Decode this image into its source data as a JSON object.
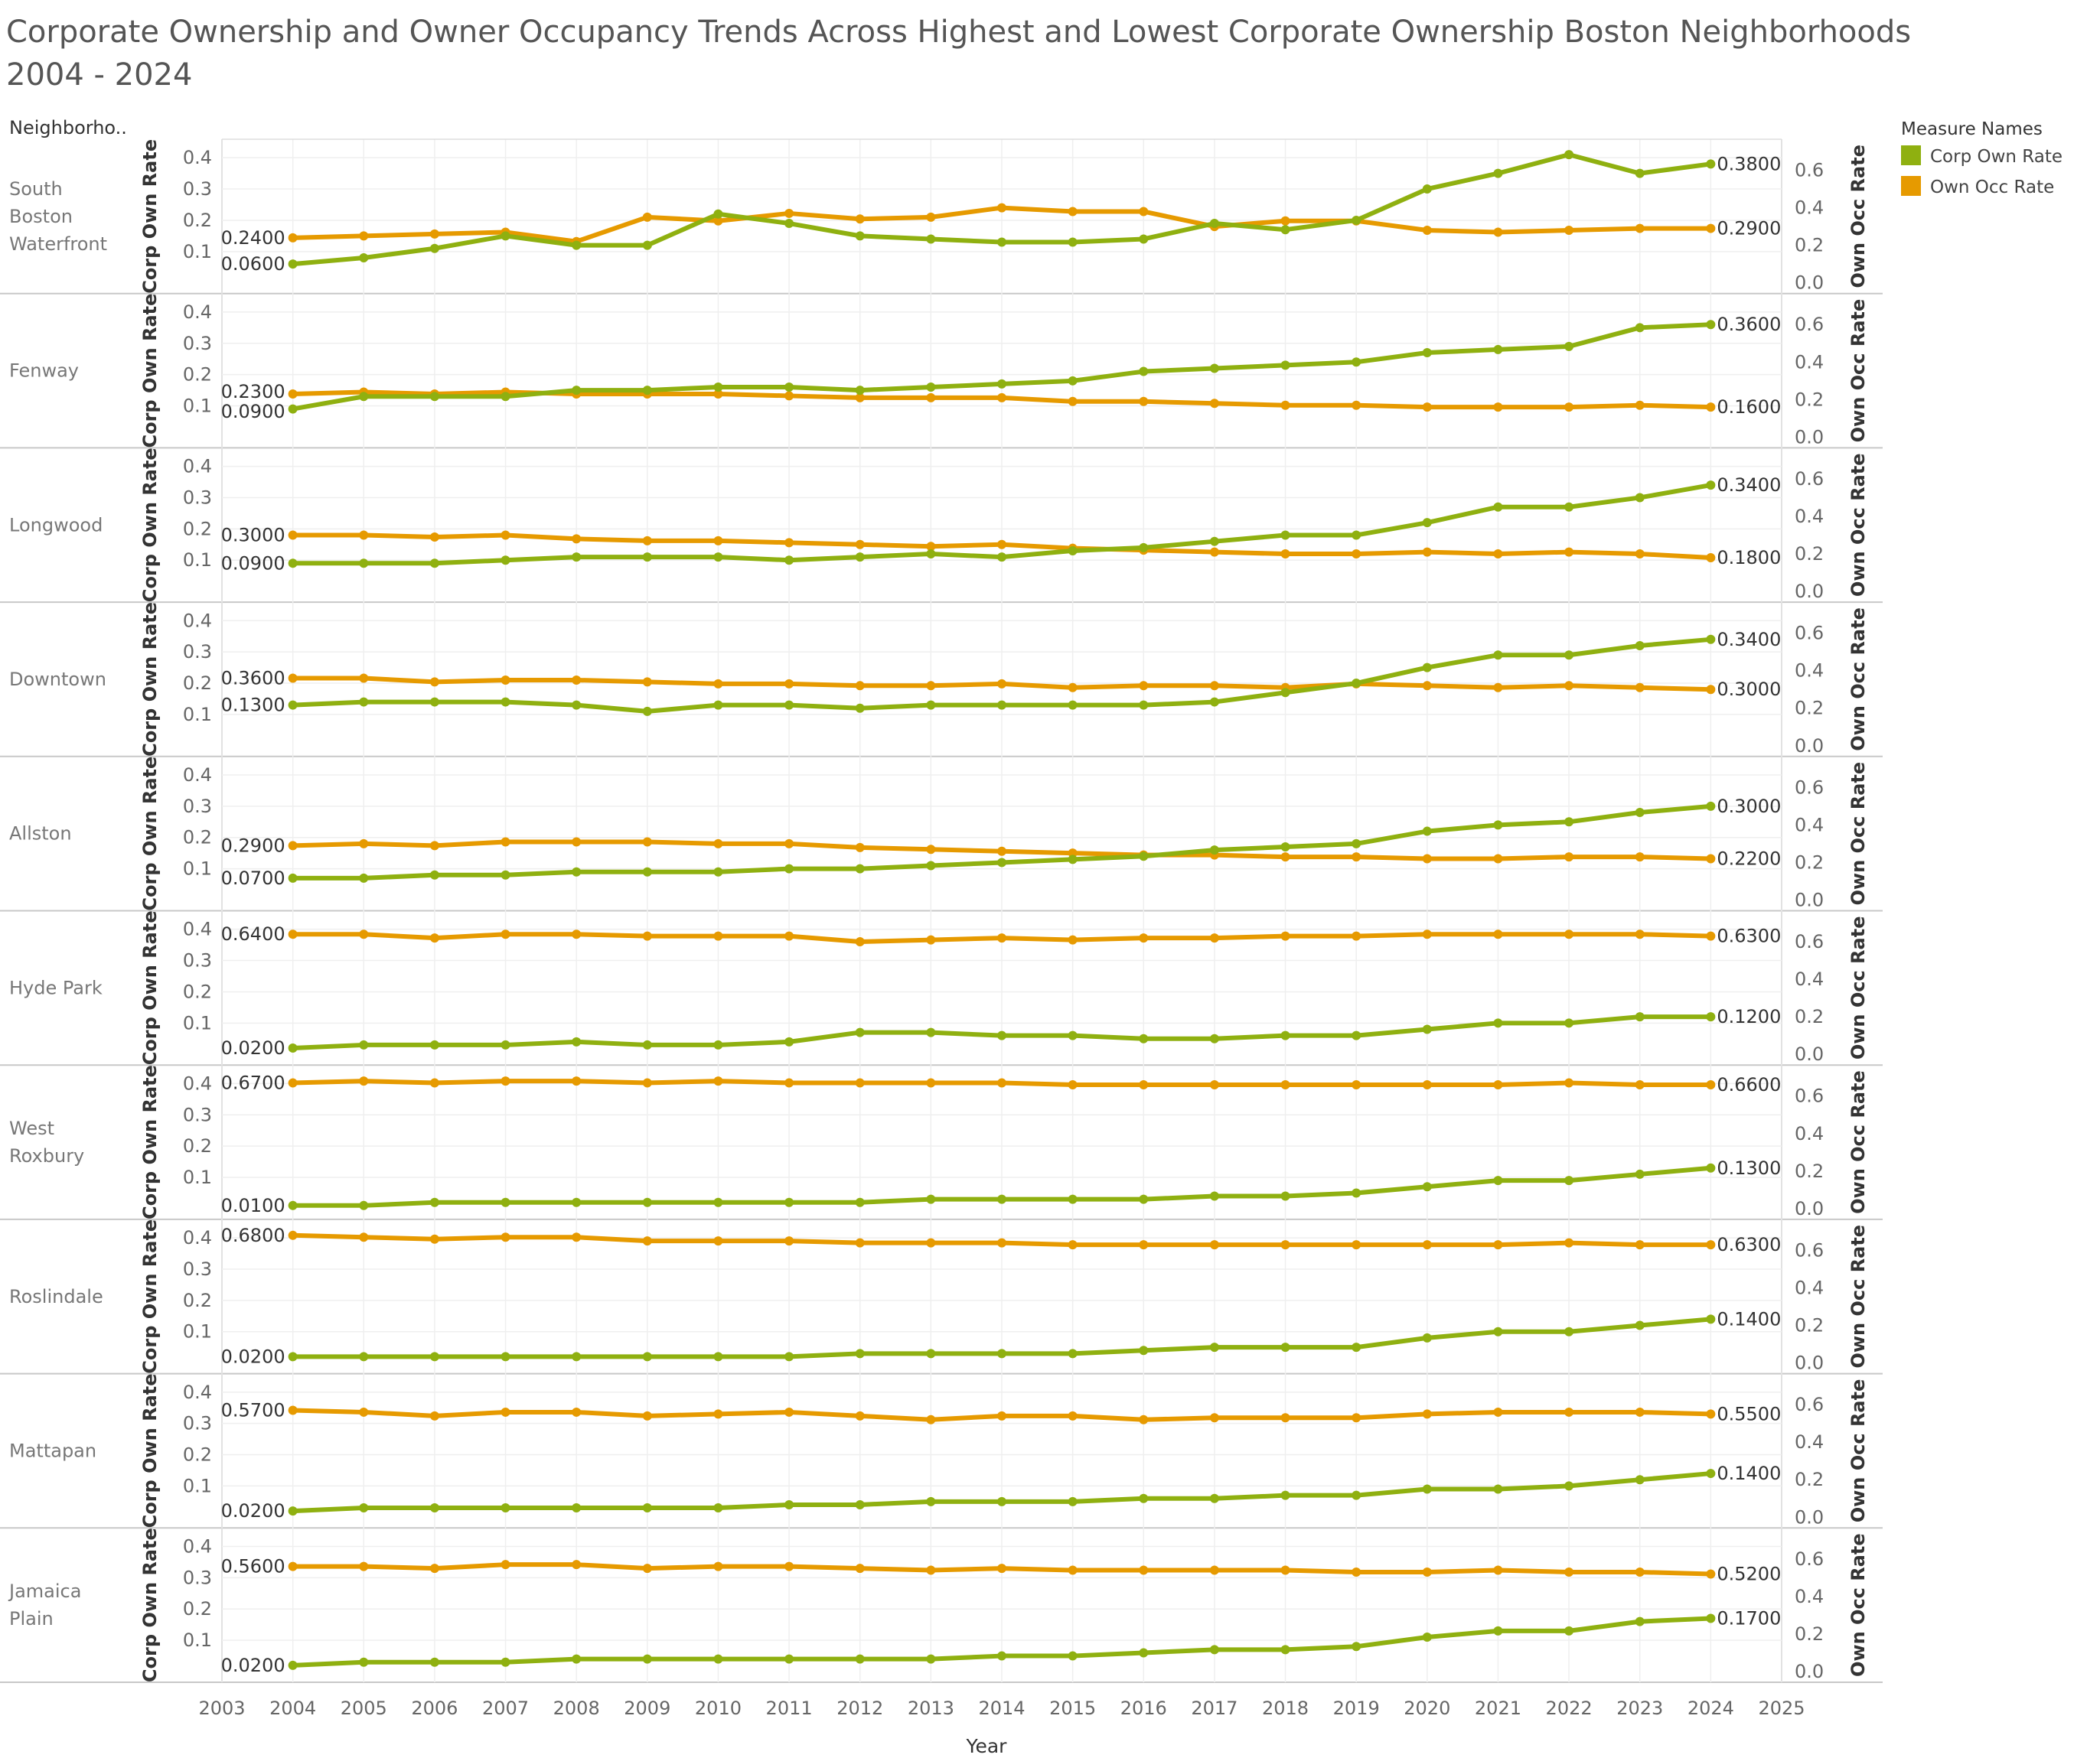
{
  "title": {
    "line1": "Corporate Ownership and Owner Occupancy Trends Across Highest and Lowest Corporate Ownership Boston Neighborhoods",
    "line2": "2004 - 2024"
  },
  "row_header": "Neighborho..",
  "legend": {
    "title": "Measure Names",
    "items": [
      {
        "label": "Corp Own Rate",
        "color": "#8fb010"
      },
      {
        "label": "Own Occ Rate",
        "color": "#e69a00"
      }
    ]
  },
  "chart_data": {
    "type": "line",
    "x_axis": {
      "title": "Year",
      "ticks": [
        2003,
        2004,
        2005,
        2006,
        2007,
        2008,
        2009,
        2010,
        2011,
        2012,
        2013,
        2014,
        2015,
        2016,
        2017,
        2018,
        2019,
        2020,
        2021,
        2022,
        2023,
        2024,
        2025
      ],
      "range": [
        2003,
        2025
      ]
    },
    "left_axis": {
      "title": "Corp Own Rate",
      "ticks": [
        "0.1",
        "0.2",
        "0.3",
        "0.4"
      ],
      "range": [
        0,
        0.42
      ]
    },
    "right_axis": {
      "title": "Own Occ Rate",
      "ticks": [
        "0.0",
        "0.2",
        "0.4",
        "0.6"
      ],
      "range": [
        0,
        0.7
      ]
    },
    "years": [
      2004,
      2005,
      2006,
      2007,
      2008,
      2009,
      2010,
      2011,
      2012,
      2013,
      2014,
      2015,
      2016,
      2017,
      2018,
      2019,
      2020,
      2021,
      2022,
      2023,
      2024
    ],
    "panels": [
      {
        "name": "South\nBoston\nWaterfront",
        "corp": [
          0.06,
          0.08,
          0.11,
          0.15,
          0.12,
          0.12,
          0.22,
          0.19,
          0.15,
          0.14,
          0.13,
          0.13,
          0.14,
          0.19,
          0.17,
          0.2,
          0.3,
          0.35,
          0.41,
          0.35,
          0.38
        ],
        "occ": [
          0.24,
          0.25,
          0.26,
          0.27,
          0.22,
          0.35,
          0.33,
          0.37,
          0.34,
          0.35,
          0.4,
          0.38,
          0.38,
          0.3,
          0.33,
          0.33,
          0.28,
          0.27,
          0.28,
          0.29,
          0.29
        ],
        "corp_start": "0.0600",
        "corp_end": "0.3800",
        "occ_start": "0.2400",
        "occ_end": "0.2900"
      },
      {
        "name": "Fenway",
        "corp": [
          0.09,
          0.13,
          0.13,
          0.13,
          0.15,
          0.15,
          0.16,
          0.16,
          0.15,
          0.16,
          0.17,
          0.18,
          0.21,
          0.22,
          0.23,
          0.24,
          0.27,
          0.28,
          0.29,
          0.35,
          0.36
        ],
        "occ": [
          0.23,
          0.24,
          0.23,
          0.24,
          0.23,
          0.23,
          0.23,
          0.22,
          0.21,
          0.21,
          0.21,
          0.19,
          0.19,
          0.18,
          0.17,
          0.17,
          0.16,
          0.16,
          0.16,
          0.17,
          0.16
        ],
        "corp_start": "0.0900",
        "corp_end": "0.3600",
        "occ_start": "0.2300",
        "occ_end": "0.1600"
      },
      {
        "name": "Longwood",
        "corp": [
          0.09,
          0.09,
          0.09,
          0.1,
          0.11,
          0.11,
          0.11,
          0.1,
          0.11,
          0.12,
          0.11,
          0.13,
          0.14,
          0.16,
          0.18,
          0.18,
          0.22,
          0.27,
          0.27,
          0.3,
          0.34
        ],
        "occ": [
          0.3,
          0.3,
          0.29,
          0.3,
          0.28,
          0.27,
          0.27,
          0.26,
          0.25,
          0.24,
          0.25,
          0.23,
          0.22,
          0.21,
          0.2,
          0.2,
          0.21,
          0.2,
          0.21,
          0.2,
          0.18
        ],
        "corp_start": "0.0900",
        "corp_end": "0.3400",
        "occ_start": "0.3000",
        "occ_end": "0.1800"
      },
      {
        "name": "Downtown",
        "corp": [
          0.13,
          0.14,
          0.14,
          0.14,
          0.13,
          0.11,
          0.13,
          0.13,
          0.12,
          0.13,
          0.13,
          0.13,
          0.13,
          0.14,
          0.17,
          0.2,
          0.25,
          0.29,
          0.29,
          0.32,
          0.34
        ],
        "occ": [
          0.36,
          0.36,
          0.34,
          0.35,
          0.35,
          0.34,
          0.33,
          0.33,
          0.32,
          0.32,
          0.33,
          0.31,
          0.32,
          0.32,
          0.31,
          0.33,
          0.32,
          0.31,
          0.32,
          0.31,
          0.3
        ],
        "corp_start": "0.1300",
        "corp_end": "0.3400",
        "occ_start": "0.3600",
        "occ_end": "0.3000"
      },
      {
        "name": "Allston",
        "corp": [
          0.07,
          0.07,
          0.08,
          0.08,
          0.09,
          0.09,
          0.09,
          0.1,
          0.1,
          0.11,
          0.12,
          0.13,
          0.14,
          0.16,
          0.17,
          0.18,
          0.22,
          0.24,
          0.25,
          0.28,
          0.3
        ],
        "occ": [
          0.29,
          0.3,
          0.29,
          0.31,
          0.31,
          0.31,
          0.3,
          0.3,
          0.28,
          0.27,
          0.26,
          0.25,
          0.24,
          0.24,
          0.23,
          0.23,
          0.22,
          0.22,
          0.23,
          0.23,
          0.22
        ],
        "corp_start": "0.0700",
        "corp_end": "0.3000",
        "occ_start": "0.2900",
        "occ_end": "0.2200"
      },
      {
        "name": "Hyde Park",
        "corp": [
          0.02,
          0.03,
          0.03,
          0.03,
          0.04,
          0.03,
          0.03,
          0.04,
          0.07,
          0.07,
          0.06,
          0.06,
          0.05,
          0.05,
          0.06,
          0.06,
          0.08,
          0.1,
          0.1,
          0.12,
          0.12
        ],
        "occ": [
          0.64,
          0.64,
          0.62,
          0.64,
          0.64,
          0.63,
          0.63,
          0.63,
          0.6,
          0.61,
          0.62,
          0.61,
          0.62,
          0.62,
          0.63,
          0.63,
          0.64,
          0.64,
          0.64,
          0.64,
          0.63
        ],
        "corp_start": "0.0200",
        "corp_end": "0.1200",
        "occ_start": "0.6400",
        "occ_end": "0.6300"
      },
      {
        "name": "West\nRoxbury",
        "corp": [
          0.01,
          0.01,
          0.02,
          0.02,
          0.02,
          0.02,
          0.02,
          0.02,
          0.02,
          0.03,
          0.03,
          0.03,
          0.03,
          0.04,
          0.04,
          0.05,
          0.07,
          0.09,
          0.09,
          0.11,
          0.13
        ],
        "occ": [
          0.67,
          0.68,
          0.67,
          0.68,
          0.68,
          0.67,
          0.68,
          0.67,
          0.67,
          0.67,
          0.67,
          0.66,
          0.66,
          0.66,
          0.66,
          0.66,
          0.66,
          0.66,
          0.67,
          0.66,
          0.66
        ],
        "corp_start": "0.0100",
        "corp_end": "0.1300",
        "occ_start": "0.6700",
        "occ_end": "0.6600"
      },
      {
        "name": "Roslindale",
        "corp": [
          0.02,
          0.02,
          0.02,
          0.02,
          0.02,
          0.02,
          0.02,
          0.02,
          0.03,
          0.03,
          0.03,
          0.03,
          0.04,
          0.05,
          0.05,
          0.05,
          0.08,
          0.1,
          0.1,
          0.12,
          0.14
        ],
        "occ": [
          0.68,
          0.67,
          0.66,
          0.67,
          0.67,
          0.65,
          0.65,
          0.65,
          0.64,
          0.64,
          0.64,
          0.63,
          0.63,
          0.63,
          0.63,
          0.63,
          0.63,
          0.63,
          0.64,
          0.63,
          0.63
        ],
        "corp_start": "0.0200",
        "corp_end": "0.1400",
        "occ_start": "0.6800",
        "occ_end": "0.6300"
      },
      {
        "name": "Mattapan",
        "corp": [
          0.02,
          0.03,
          0.03,
          0.03,
          0.03,
          0.03,
          0.03,
          0.04,
          0.04,
          0.05,
          0.05,
          0.05,
          0.06,
          0.06,
          0.07,
          0.07,
          0.09,
          0.09,
          0.1,
          0.12,
          0.14
        ],
        "occ": [
          0.57,
          0.56,
          0.54,
          0.56,
          0.56,
          0.54,
          0.55,
          0.56,
          0.54,
          0.52,
          0.54,
          0.54,
          0.52,
          0.53,
          0.53,
          0.53,
          0.55,
          0.56,
          0.56,
          0.56,
          0.55
        ],
        "corp_start": "0.0200",
        "corp_end": "0.1400",
        "occ_start": "0.5700",
        "occ_end": "0.5500"
      },
      {
        "name": "Jamaica\nPlain",
        "corp": [
          0.02,
          0.03,
          0.03,
          0.03,
          0.04,
          0.04,
          0.04,
          0.04,
          0.04,
          0.04,
          0.05,
          0.05,
          0.06,
          0.07,
          0.07,
          0.08,
          0.11,
          0.13,
          0.13,
          0.16,
          0.17
        ],
        "occ": [
          0.56,
          0.56,
          0.55,
          0.57,
          0.57,
          0.55,
          0.56,
          0.56,
          0.55,
          0.54,
          0.55,
          0.54,
          0.54,
          0.54,
          0.54,
          0.53,
          0.53,
          0.54,
          0.53,
          0.53,
          0.52
        ],
        "corp_start": "0.0200",
        "corp_end": "0.1700",
        "occ_start": "0.5600",
        "occ_end": "0.5200"
      }
    ],
    "grid": true,
    "legend_position": "top-right"
  }
}
